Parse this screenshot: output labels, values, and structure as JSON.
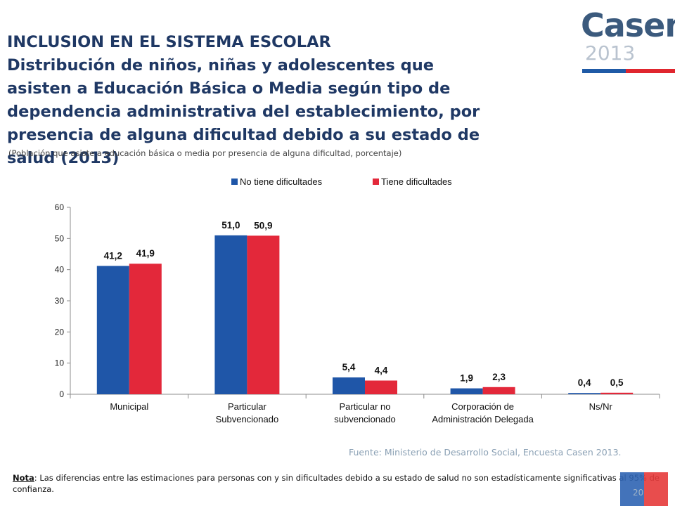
{
  "header": {
    "title_lines": [
      "INCLUSION EN EL SISTEMA ESCOLAR",
      "Distribución de niños, niñas y adolescentes que",
      "asisten a Educación Básica o Media según tipo de",
      "dependencia administrativa del establecimiento, por",
      "presencia de alguna dificultad debido a su estado de",
      "salud (2013)"
    ],
    "subtitle": "(Población que asiste a educación básica o media por presencia de alguna dificultad, porcentaje)"
  },
  "logo": {
    "word": "Casen",
    "year": "2013"
  },
  "chart_data": {
    "type": "bar",
    "categories": [
      [
        "Municipal"
      ],
      [
        "Particular",
        "Subvencionado"
      ],
      [
        "Particular no",
        "subvencionado"
      ],
      [
        "Corporación de",
        "Administración Delegada"
      ],
      [
        "Ns/Nr"
      ]
    ],
    "series": [
      {
        "name": "No tiene dificultades",
        "color": "#1f56a8",
        "values": [
          41.2,
          51.0,
          5.4,
          1.9,
          0.4
        ],
        "labels": [
          "41,2",
          "51,0",
          "5,4",
          "1,9",
          "0,4"
        ]
      },
      {
        "name": "Tiene dificultades",
        "color": "#e3283a",
        "values": [
          41.9,
          50.9,
          4.4,
          2.3,
          0.5
        ],
        "labels": [
          "41,9",
          "50,9",
          "4,4",
          "2,3",
          "0,5"
        ]
      }
    ],
    "ylim": [
      0,
      60
    ],
    "yticks": [
      0,
      10,
      20,
      30,
      40,
      50,
      60
    ],
    "legend": "top-center",
    "grid": false
  },
  "source": "Fuente: Ministerio de Desarrollo Social, Encuesta Casen 2013.",
  "note": {
    "label": "Nota",
    "text": ": Las diferencias entre las estimaciones para personas con y sin dificultades debido a su estado de salud no son estadísticamente significativas al 95% de confianza."
  },
  "page_number": "20"
}
